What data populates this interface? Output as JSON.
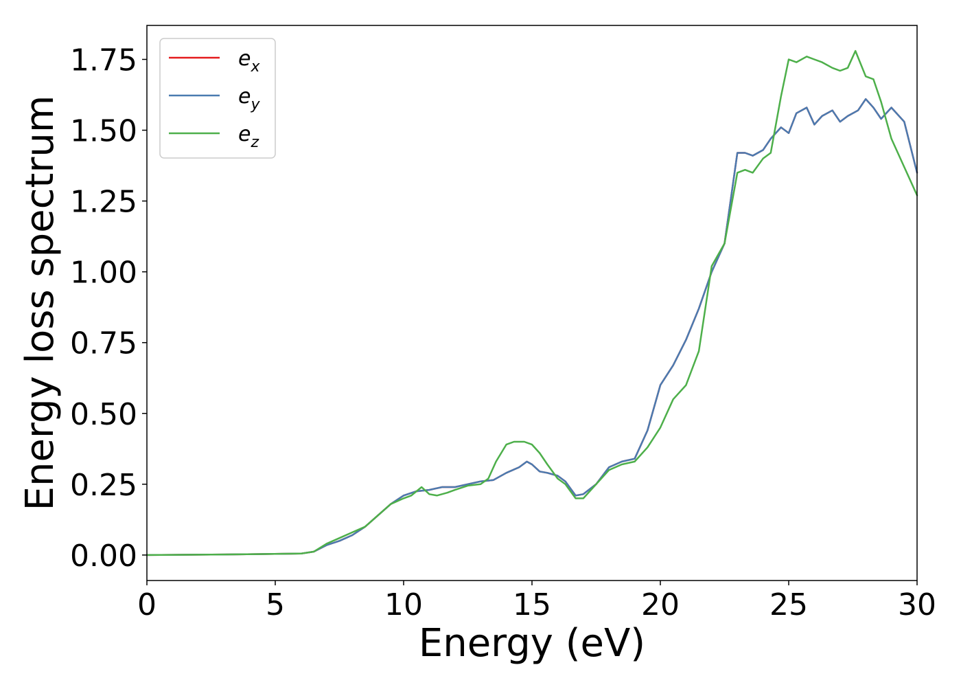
{
  "chart_data": {
    "type": "line",
    "xlabel": "Energy (eV)",
    "ylabel": "Energy loss spectrum",
    "xlim": [
      0,
      30
    ],
    "ylim": [
      -0.09,
      1.87
    ],
    "xticks": [
      "0",
      "5",
      "10",
      "15",
      "20",
      "25",
      "30"
    ],
    "yticks": [
      "0.00",
      "0.25",
      "0.50",
      "0.75",
      "1.00",
      "1.25",
      "1.50",
      "1.75"
    ],
    "grid": false,
    "legend_position": "top-left",
    "series": [
      {
        "name": "e_x",
        "label_base": "e",
        "label_sub": "x",
        "color": "#e41a1c",
        "x": [
          0,
          3,
          6,
          6.5,
          7,
          7.5,
          8,
          8.5,
          9,
          9.5,
          10,
          10.5,
          11,
          11.5,
          12,
          12.5,
          13,
          13.5,
          14,
          14.5,
          14.8,
          15,
          15.3,
          15.6,
          16,
          16.3,
          16.7,
          17,
          17.5,
          18,
          18.5,
          19,
          19.5,
          20,
          20.5,
          21,
          21.5,
          22,
          22.5,
          23,
          23.3,
          23.6,
          24,
          24.3,
          24.7,
          25,
          25.3,
          25.7,
          26,
          26.3,
          26.7,
          27,
          27.3,
          27.7,
          28,
          28.3,
          28.6,
          29,
          29.5,
          30
        ],
        "y": [
          0,
          0.002,
          0.005,
          0.012,
          0.035,
          0.05,
          0.07,
          0.1,
          0.14,
          0.18,
          0.21,
          0.225,
          0.23,
          0.24,
          0.24,
          0.25,
          0.26,
          0.265,
          0.29,
          0.31,
          0.33,
          0.32,
          0.295,
          0.29,
          0.28,
          0.26,
          0.21,
          0.215,
          0.25,
          0.31,
          0.33,
          0.34,
          0.44,
          0.6,
          0.67,
          0.76,
          0.87,
          1.0,
          1.1,
          1.42,
          1.42,
          1.41,
          1.43,
          1.47,
          1.51,
          1.49,
          1.56,
          1.58,
          1.52,
          1.55,
          1.57,
          1.53,
          1.55,
          1.57,
          1.61,
          1.58,
          1.54,
          1.58,
          1.53,
          1.35
        ]
      },
      {
        "name": "e_y",
        "label_base": "e",
        "label_sub": "y",
        "color": "#4a7bb0",
        "x": [
          0,
          3,
          6,
          6.5,
          7,
          7.5,
          8,
          8.5,
          9,
          9.5,
          10,
          10.5,
          11,
          11.5,
          12,
          12.5,
          13,
          13.5,
          14,
          14.5,
          14.8,
          15,
          15.3,
          15.6,
          16,
          16.3,
          16.7,
          17,
          17.5,
          18,
          18.5,
          19,
          19.5,
          20,
          20.5,
          21,
          21.5,
          22,
          22.5,
          23,
          23.3,
          23.6,
          24,
          24.3,
          24.7,
          25,
          25.3,
          25.7,
          26,
          26.3,
          26.7,
          27,
          27.3,
          27.7,
          28,
          28.3,
          28.6,
          29,
          29.5,
          30
        ],
        "y": [
          0,
          0.002,
          0.005,
          0.012,
          0.035,
          0.05,
          0.07,
          0.1,
          0.14,
          0.18,
          0.21,
          0.225,
          0.23,
          0.24,
          0.24,
          0.25,
          0.26,
          0.265,
          0.29,
          0.31,
          0.33,
          0.32,
          0.295,
          0.29,
          0.28,
          0.26,
          0.21,
          0.215,
          0.25,
          0.31,
          0.33,
          0.34,
          0.44,
          0.6,
          0.67,
          0.76,
          0.87,
          1.0,
          1.1,
          1.42,
          1.42,
          1.41,
          1.43,
          1.47,
          1.51,
          1.49,
          1.56,
          1.58,
          1.52,
          1.55,
          1.57,
          1.53,
          1.55,
          1.57,
          1.61,
          1.58,
          1.54,
          1.58,
          1.53,
          1.35
        ]
      },
      {
        "name": "e_z",
        "label_base": "e",
        "label_sub": "z",
        "color": "#4daf4a",
        "x": [
          0,
          3,
          6,
          6.5,
          7,
          7.5,
          8,
          8.5,
          9,
          9.5,
          10,
          10.3,
          10.7,
          11,
          11.3,
          11.7,
          12,
          12.5,
          13,
          13.3,
          13.6,
          14,
          14.3,
          14.7,
          15,
          15.3,
          15.6,
          16,
          16.3,
          16.7,
          17,
          17.5,
          18,
          18.5,
          19,
          19.5,
          20,
          20.5,
          21,
          21.5,
          22,
          22.5,
          23,
          23.3,
          23.6,
          24,
          24.3,
          24.7,
          25,
          25.3,
          25.7,
          26,
          26.3,
          26.7,
          27,
          27.3,
          27.6,
          28,
          28.3,
          28.6,
          29,
          29.5,
          30
        ],
        "y": [
          0,
          0.002,
          0.005,
          0.012,
          0.04,
          0.06,
          0.08,
          0.1,
          0.14,
          0.18,
          0.2,
          0.21,
          0.24,
          0.215,
          0.21,
          0.22,
          0.23,
          0.245,
          0.25,
          0.27,
          0.33,
          0.39,
          0.4,
          0.4,
          0.39,
          0.36,
          0.32,
          0.27,
          0.25,
          0.2,
          0.2,
          0.25,
          0.3,
          0.32,
          0.33,
          0.38,
          0.45,
          0.55,
          0.6,
          0.72,
          1.02,
          1.1,
          1.35,
          1.36,
          1.35,
          1.4,
          1.42,
          1.62,
          1.75,
          1.74,
          1.76,
          1.75,
          1.74,
          1.72,
          1.71,
          1.72,
          1.78,
          1.69,
          1.68,
          1.6,
          1.47,
          1.37,
          1.27
        ]
      }
    ]
  }
}
